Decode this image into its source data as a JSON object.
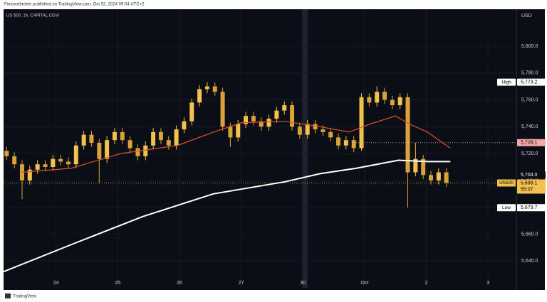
{
  "chart_data": {
    "type": "candlestick",
    "header": "Financebroker published on TradingView.com, Oct 02, 2024 09:04 UTC+2",
    "title": "US 500, 1h, CAPITAL.COM",
    "currency": "USD",
    "footer": "TradingView",
    "up_color": "#f2c14e",
    "down_color": "#d9a23a",
    "grid": true,
    "xlim": [
      -0.85,
      7.46
    ],
    "ylim": [
      5620,
      5827.5
    ],
    "xticks": [
      {
        "value": 0,
        "label": "24"
      },
      {
        "value": 1,
        "label": "25"
      },
      {
        "value": 2,
        "label": "26"
      },
      {
        "value": 3,
        "label": "27"
      },
      {
        "value": 4,
        "label": "30"
      },
      {
        "value": 5,
        "label": "Oct"
      },
      {
        "value": 6,
        "label": "2"
      },
      {
        "value": 7,
        "label": "3"
      }
    ],
    "yticks": [
      {
        "value": 5640,
        "label": "5,640.0"
      },
      {
        "value": 5660,
        "label": "5,660.0"
      },
      {
        "value": 5680,
        "label": "5,680.0"
      },
      {
        "value": 5700,
        "label": "5,700.0"
      },
      {
        "value": 5720,
        "label": "5,720.0"
      },
      {
        "value": 5740,
        "label": "5,740.0"
      },
      {
        "value": 5760,
        "label": "5,760.0"
      },
      {
        "value": 5780,
        "label": "5,780.0"
      },
      {
        "value": 5800,
        "label": "5,800.0"
      }
    ],
    "x": [
      -0.8,
      -0.675,
      -0.55,
      -0.425,
      -0.3,
      -0.175,
      -0.05,
      0.075,
      0.2,
      0.325,
      0.45,
      0.575,
      0.7,
      0.825,
      0.95,
      1.075,
      1.2,
      1.325,
      1.45,
      1.575,
      1.7,
      1.825,
      1.95,
      2.075,
      2.2,
      2.325,
      2.45,
      2.575,
      2.7,
      2.825,
      2.95,
      3.075,
      3.2,
      3.325,
      3.45,
      3.575,
      3.7,
      3.825,
      3.95,
      4.075,
      4.2,
      4.325,
      4.45,
      4.575,
      4.7,
      4.825,
      4.95,
      5.075,
      5.2,
      5.325,
      5.45,
      5.575,
      5.7,
      5.825,
      5.95,
      6.075,
      6.2,
      6.325
    ],
    "open": [
      5722,
      5718,
      5712,
      5700,
      5708,
      5712,
      5710,
      5716,
      5714,
      5712,
      5726,
      5734,
      5728,
      5716,
      5730,
      5736,
      5730,
      5724,
      5718,
      5726,
      5736,
      5730,
      5726,
      5738,
      5744,
      5758,
      5768,
      5770,
      5766,
      5740,
      5732,
      5742,
      5748,
      5744,
      5740,
      5746,
      5752,
      5756,
      5740,
      5734,
      5742,
      5738,
      5736,
      5732,
      5726,
      5730,
      5724,
      5762,
      5758,
      5766,
      5760,
      5756,
      5762,
      5706,
      5716,
      5704,
      5700,
      5706
    ],
    "high": [
      5725,
      5721,
      5715,
      5711,
      5715,
      5715,
      5719,
      5719,
      5717,
      5729,
      5737,
      5737,
      5731,
      5733,
      5739,
      5739,
      5733,
      5727,
      5729,
      5739,
      5739,
      5733,
      5741,
      5747,
      5761,
      5771,
      5773.2,
      5773,
      5769,
      5743,
      5745,
      5751,
      5751,
      5747,
      5749,
      5755,
      5759,
      5759,
      5743,
      5745,
      5745,
      5741,
      5739,
      5735,
      5733,
      5733,
      5765,
      5765,
      5770,
      5769,
      5763,
      5765,
      5765,
      5728,
      5719,
      5707,
      5709,
      5709
    ],
    "low": [
      5715,
      5709,
      5686,
      5697,
      5705,
      5707,
      5707,
      5711,
      5709,
      5709,
      5723,
      5725,
      5698,
      5713,
      5727,
      5727,
      5721,
      5715,
      5715,
      5723,
      5727,
      5723,
      5723,
      5735,
      5741,
      5755,
      5765,
      5763,
      5737,
      5725,
      5729,
      5739,
      5741,
      5737,
      5737,
      5743,
      5749,
      5737,
      5731,
      5731,
      5735,
      5733,
      5729,
      5723,
      5723,
      5721,
      5722,
      5755,
      5755,
      5757,
      5753,
      5753,
      5679.7,
      5703,
      5701,
      5697,
      5697,
      5695.1
    ],
    "close": [
      5718,
      5712,
      5700,
      5708,
      5712,
      5710,
      5716,
      5714,
      5712,
      5726,
      5734,
      5728,
      5716,
      5730,
      5736,
      5730,
      5724,
      5718,
      5726,
      5736,
      5730,
      5726,
      5738,
      5744,
      5758,
      5768,
      5770,
      5766,
      5740,
      5732,
      5742,
      5748,
      5744,
      5740,
      5746,
      5752,
      5756,
      5740,
      5734,
      5742,
      5738,
      5736,
      5732,
      5726,
      5730,
      5724,
      5762,
      5758,
      5766,
      5760,
      5756,
      5762,
      5706,
      5716,
      5704,
      5700,
      5706,
      5698.1
    ],
    "lines": [
      {
        "color": "#e0502a",
        "x": [
          -0.57,
          0.24,
          1.05,
          1.97,
          2.55,
          3.01,
          3.71,
          4.28,
          4.75,
          5.09,
          5.5,
          5.73,
          6.02,
          6.39
        ],
        "values": [
          5706,
          5709,
          5720,
          5726,
          5736,
          5743,
          5744,
          5740,
          5736,
          5742,
          5748,
          5742,
          5736,
          5724
        ]
      },
      {
        "color": "#ffffff",
        "x": [
          -0.85,
          0.24,
          1.4,
          2.55,
          3.71,
          4.28,
          4.86,
          5.55,
          6.02,
          6.39
        ],
        "values": [
          5632,
          5652,
          5673,
          5690,
          5699,
          5705,
          5709,
          5715,
          5714,
          5714
        ]
      }
    ],
    "price_labels": [
      {
        "tag": "High",
        "value": 5773.2,
        "label": "5,773.2",
        "bg": "#ffffff",
        "fg": "#000000",
        "line": false
      },
      {
        "value": 5728.1,
        "label": "5,728.1",
        "bg": "#f4a7a7",
        "fg": "#000000",
        "line": true
      },
      {
        "value": 5704.0,
        "label": "5,704.0",
        "bg": "#0c0e15",
        "fg": "#ffffff",
        "line": false
      },
      {
        "tag": "US500",
        "value": 5698.1,
        "label": "5,698.1",
        "countdown": "55:07",
        "bg": "#f2c14e",
        "fg": "#000000",
        "line": true
      },
      {
        "tag": "Low",
        "value": 5679.7,
        "label": "5,679.7",
        "bg": "#ffffff",
        "fg": "#000000",
        "line": false
      }
    ]
  }
}
